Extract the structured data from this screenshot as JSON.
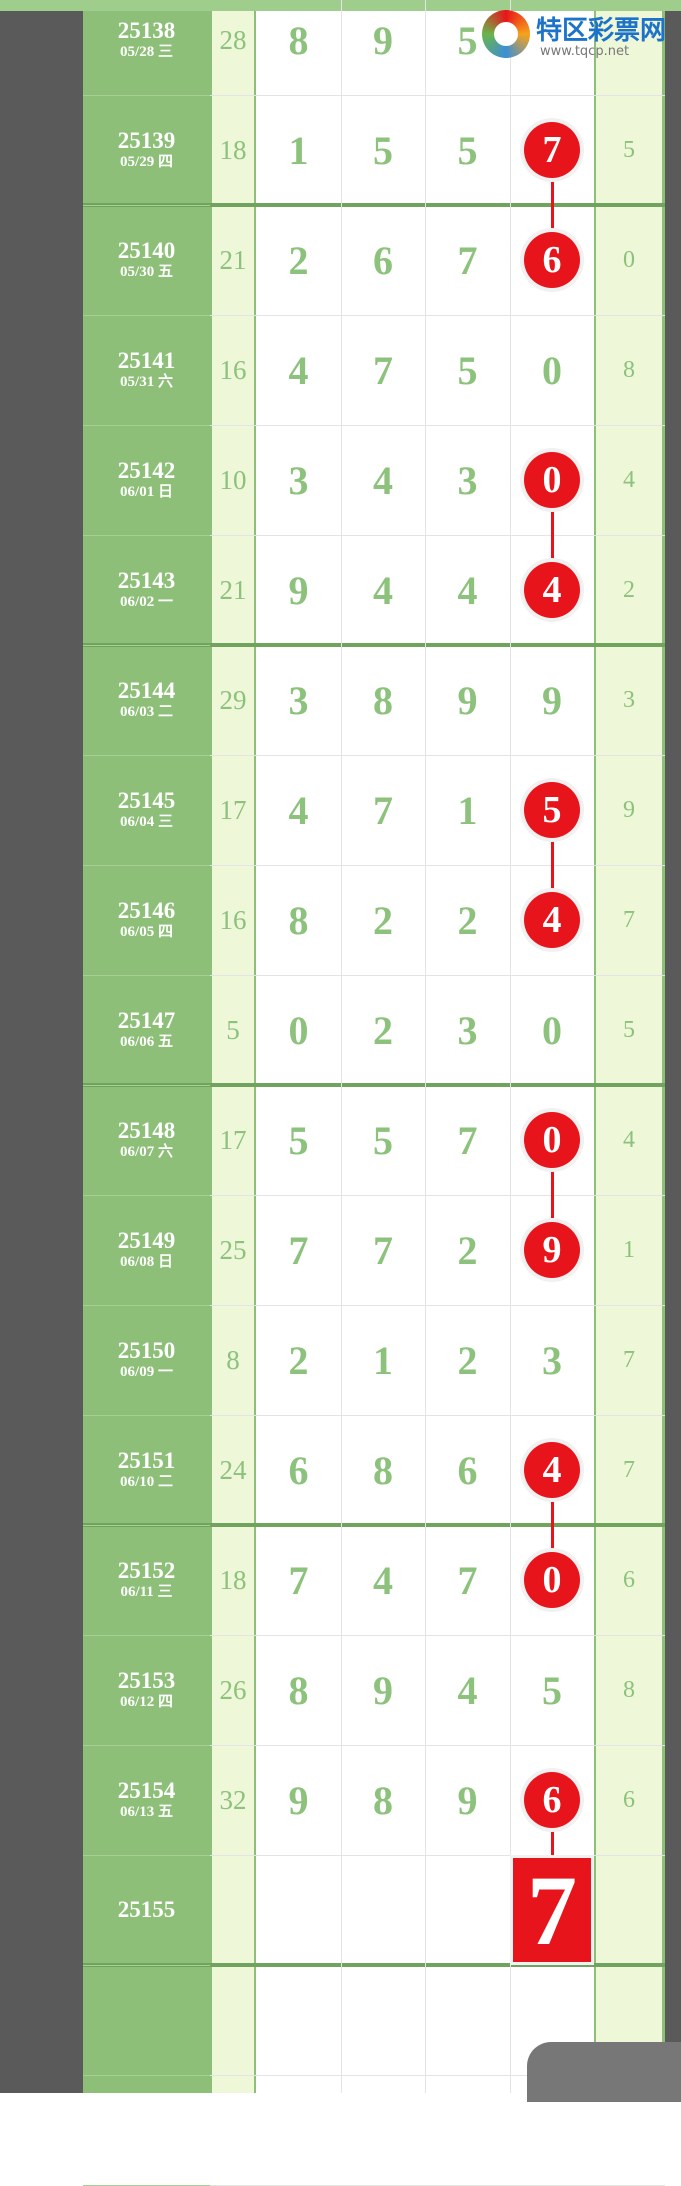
{
  "rows": [
    {
      "issue": "25138",
      "date": "05/28 三",
      "sum": "28",
      "digits": [
        "8",
        "9",
        "5",
        null
      ],
      "tail": null,
      "hit": false
    },
    {
      "issue": "25139",
      "date": "05/29 四",
      "sum": "18",
      "digits": [
        "1",
        "5",
        "5",
        "7"
      ],
      "tail": "5",
      "hit": true
    },
    {
      "issue": "25140",
      "date": "05/30 五",
      "sum": "21",
      "digits": [
        "2",
        "6",
        "7",
        "6"
      ],
      "tail": "0",
      "hit": true
    },
    {
      "issue": "25141",
      "date": "05/31 六",
      "sum": "16",
      "digits": [
        "4",
        "7",
        "5",
        "0"
      ],
      "tail": "8",
      "hit": false
    },
    {
      "issue": "25142",
      "date": "06/01 日",
      "sum": "10",
      "digits": [
        "3",
        "4",
        "3",
        "0"
      ],
      "tail": "4",
      "hit": true
    },
    {
      "issue": "25143",
      "date": "06/02 一",
      "sum": "21",
      "digits": [
        "9",
        "4",
        "4",
        "4"
      ],
      "tail": "2",
      "hit": true
    },
    {
      "issue": "25144",
      "date": "06/03 二",
      "sum": "29",
      "digits": [
        "3",
        "8",
        "9",
        "9"
      ],
      "tail": "3",
      "hit": false
    },
    {
      "issue": "25145",
      "date": "06/04 三",
      "sum": "17",
      "digits": [
        "4",
        "7",
        "1",
        "5"
      ],
      "tail": "9",
      "hit": true
    },
    {
      "issue": "25146",
      "date": "06/05 四",
      "sum": "16",
      "digits": [
        "8",
        "2",
        "2",
        "4"
      ],
      "tail": "7",
      "hit": true
    },
    {
      "issue": "25147",
      "date": "06/06 五",
      "sum": "5",
      "digits": [
        "0",
        "2",
        "3",
        "0"
      ],
      "tail": "5",
      "hit": false
    },
    {
      "issue": "25148",
      "date": "06/07 六",
      "sum": "17",
      "digits": [
        "5",
        "5",
        "7",
        "0"
      ],
      "tail": "4",
      "hit": true
    },
    {
      "issue": "25149",
      "date": "06/08 日",
      "sum": "25",
      "digits": [
        "7",
        "7",
        "2",
        "9"
      ],
      "tail": "1",
      "hit": true
    },
    {
      "issue": "25150",
      "date": "06/09 一",
      "sum": "8",
      "digits": [
        "2",
        "1",
        "2",
        "3"
      ],
      "tail": "7",
      "hit": false
    },
    {
      "issue": "25151",
      "date": "06/10 二",
      "sum": "24",
      "digits": [
        "6",
        "8",
        "6",
        "4"
      ],
      "tail": "7",
      "hit": true
    },
    {
      "issue": "25152",
      "date": "06/11 三",
      "sum": "18",
      "digits": [
        "7",
        "4",
        "7",
        "0"
      ],
      "tail": "6",
      "hit": true
    },
    {
      "issue": "25153",
      "date": "06/12 四",
      "sum": "26",
      "digits": [
        "8",
        "9",
        "4",
        "5"
      ],
      "tail": "8",
      "hit": false
    },
    {
      "issue": "25154",
      "date": "06/13 五",
      "sum": "32",
      "digits": [
        "9",
        "8",
        "9",
        "6"
      ],
      "tail": "6",
      "hit": true
    }
  ],
  "prediction": {
    "issue": "25155",
    "digit": "7"
  },
  "logo": {
    "title": "特区彩票网",
    "url": "www.tqcp.net"
  }
}
